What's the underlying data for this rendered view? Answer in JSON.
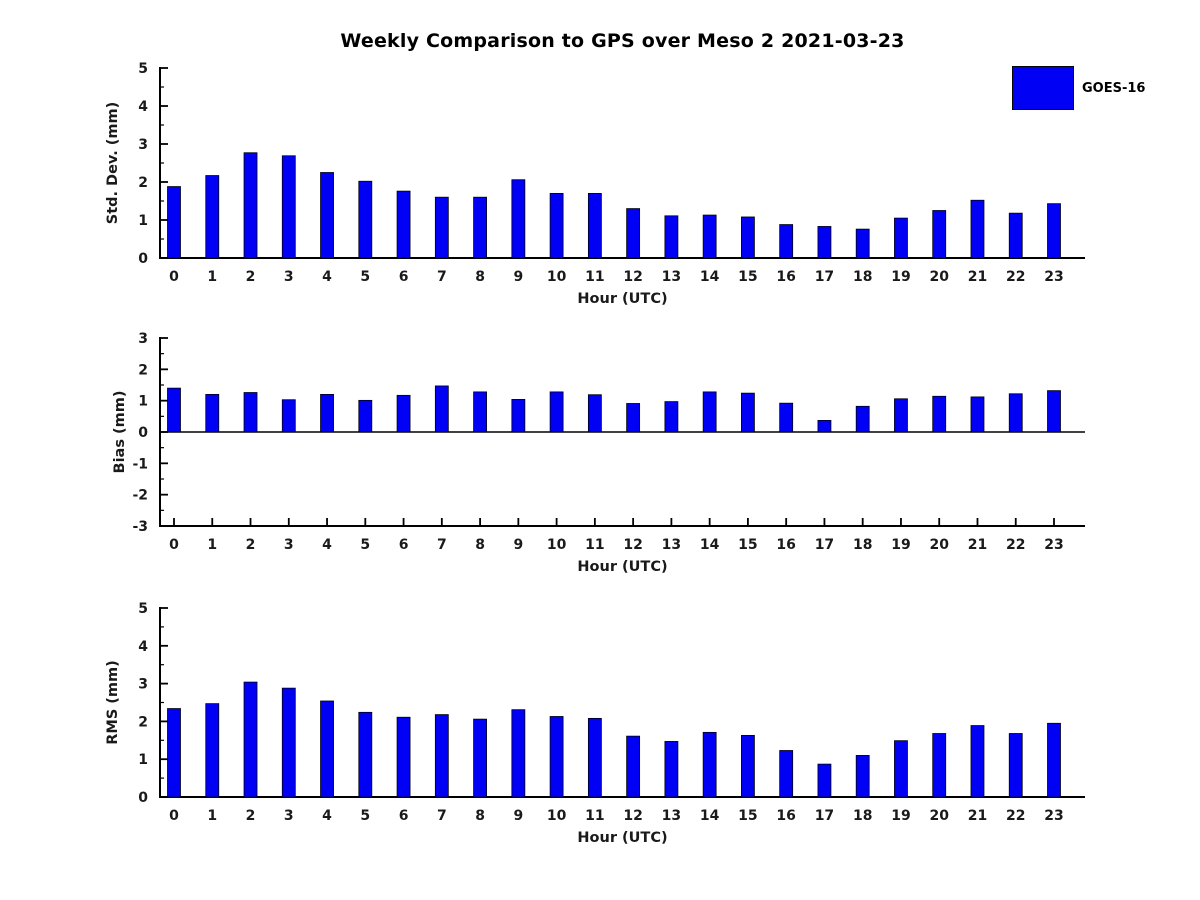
{
  "title": "Weekly Comparison to GPS over Meso 2 2021-03-23",
  "legend": {
    "label": "GOES-16",
    "color": "#0000f5"
  },
  "chart_data": [
    {
      "type": "bar",
      "name": "std-dev-chart",
      "title": "",
      "ylabel": "Std. Dev. (mm)",
      "xlabel": "Hour (UTC)",
      "categories": [
        "0",
        "1",
        "2",
        "3",
        "4",
        "5",
        "6",
        "7",
        "8",
        "9",
        "10",
        "11",
        "12",
        "13",
        "14",
        "15",
        "16",
        "17",
        "18",
        "19",
        "20",
        "21",
        "22",
        "23"
      ],
      "values": [
        1.88,
        2.17,
        2.77,
        2.69,
        2.25,
        2.02,
        1.76,
        1.6,
        1.6,
        2.06,
        1.7,
        1.7,
        1.3,
        1.11,
        1.13,
        1.08,
        0.88,
        0.83,
        0.76,
        1.05,
        1.25,
        1.52,
        1.18,
        1.43
      ],
      "ylim": [
        0,
        5
      ],
      "yticks": [
        0,
        1,
        2,
        3,
        4,
        5
      ],
      "minor_tick_step": 0.5,
      "grid": false,
      "legend_entry": "GOES-16",
      "bar_color": "#0000f5"
    },
    {
      "type": "bar",
      "name": "bias-chart",
      "title": "",
      "ylabel": "Bias (mm)",
      "xlabel": "Hour (UTC)",
      "categories": [
        "0",
        "1",
        "2",
        "3",
        "4",
        "5",
        "6",
        "7",
        "8",
        "9",
        "10",
        "11",
        "12",
        "13",
        "14",
        "15",
        "16",
        "17",
        "18",
        "19",
        "20",
        "21",
        "22",
        "23"
      ],
      "values": [
        1.4,
        1.2,
        1.26,
        1.03,
        1.2,
        1.01,
        1.17,
        1.47,
        1.28,
        1.04,
        1.28,
        1.19,
        0.91,
        0.97,
        1.28,
        1.24,
        0.92,
        0.37,
        0.82,
        1.06,
        1.14,
        1.12,
        1.22,
        1.32
      ],
      "ylim": [
        -3,
        3
      ],
      "yticks": [
        -3,
        -2,
        -1,
        0,
        1,
        2,
        3
      ],
      "minor_tick_step": 0.5,
      "grid": false,
      "legend_entry": "GOES-16",
      "bar_color": "#0000f5"
    },
    {
      "type": "bar",
      "name": "rms-chart",
      "title": "",
      "ylabel": "RMS (mm)",
      "xlabel": "Hour (UTC)",
      "categories": [
        "0",
        "1",
        "2",
        "3",
        "4",
        "5",
        "6",
        "7",
        "8",
        "9",
        "10",
        "11",
        "12",
        "13",
        "14",
        "15",
        "16",
        "17",
        "18",
        "19",
        "20",
        "21",
        "22",
        "23"
      ],
      "values": [
        2.34,
        2.47,
        3.04,
        2.88,
        2.54,
        2.24,
        2.11,
        2.18,
        2.06,
        2.31,
        2.13,
        2.08,
        1.61,
        1.47,
        1.71,
        1.63,
        1.23,
        0.87,
        1.1,
        1.49,
        1.68,
        1.89,
        1.68,
        1.95
      ],
      "ylim": [
        0,
        5
      ],
      "yticks": [
        0,
        1,
        2,
        3,
        4,
        5
      ],
      "minor_tick_step": 0.5,
      "grid": false,
      "legend_entry": "GOES-16",
      "bar_color": "#0000f5"
    }
  ]
}
